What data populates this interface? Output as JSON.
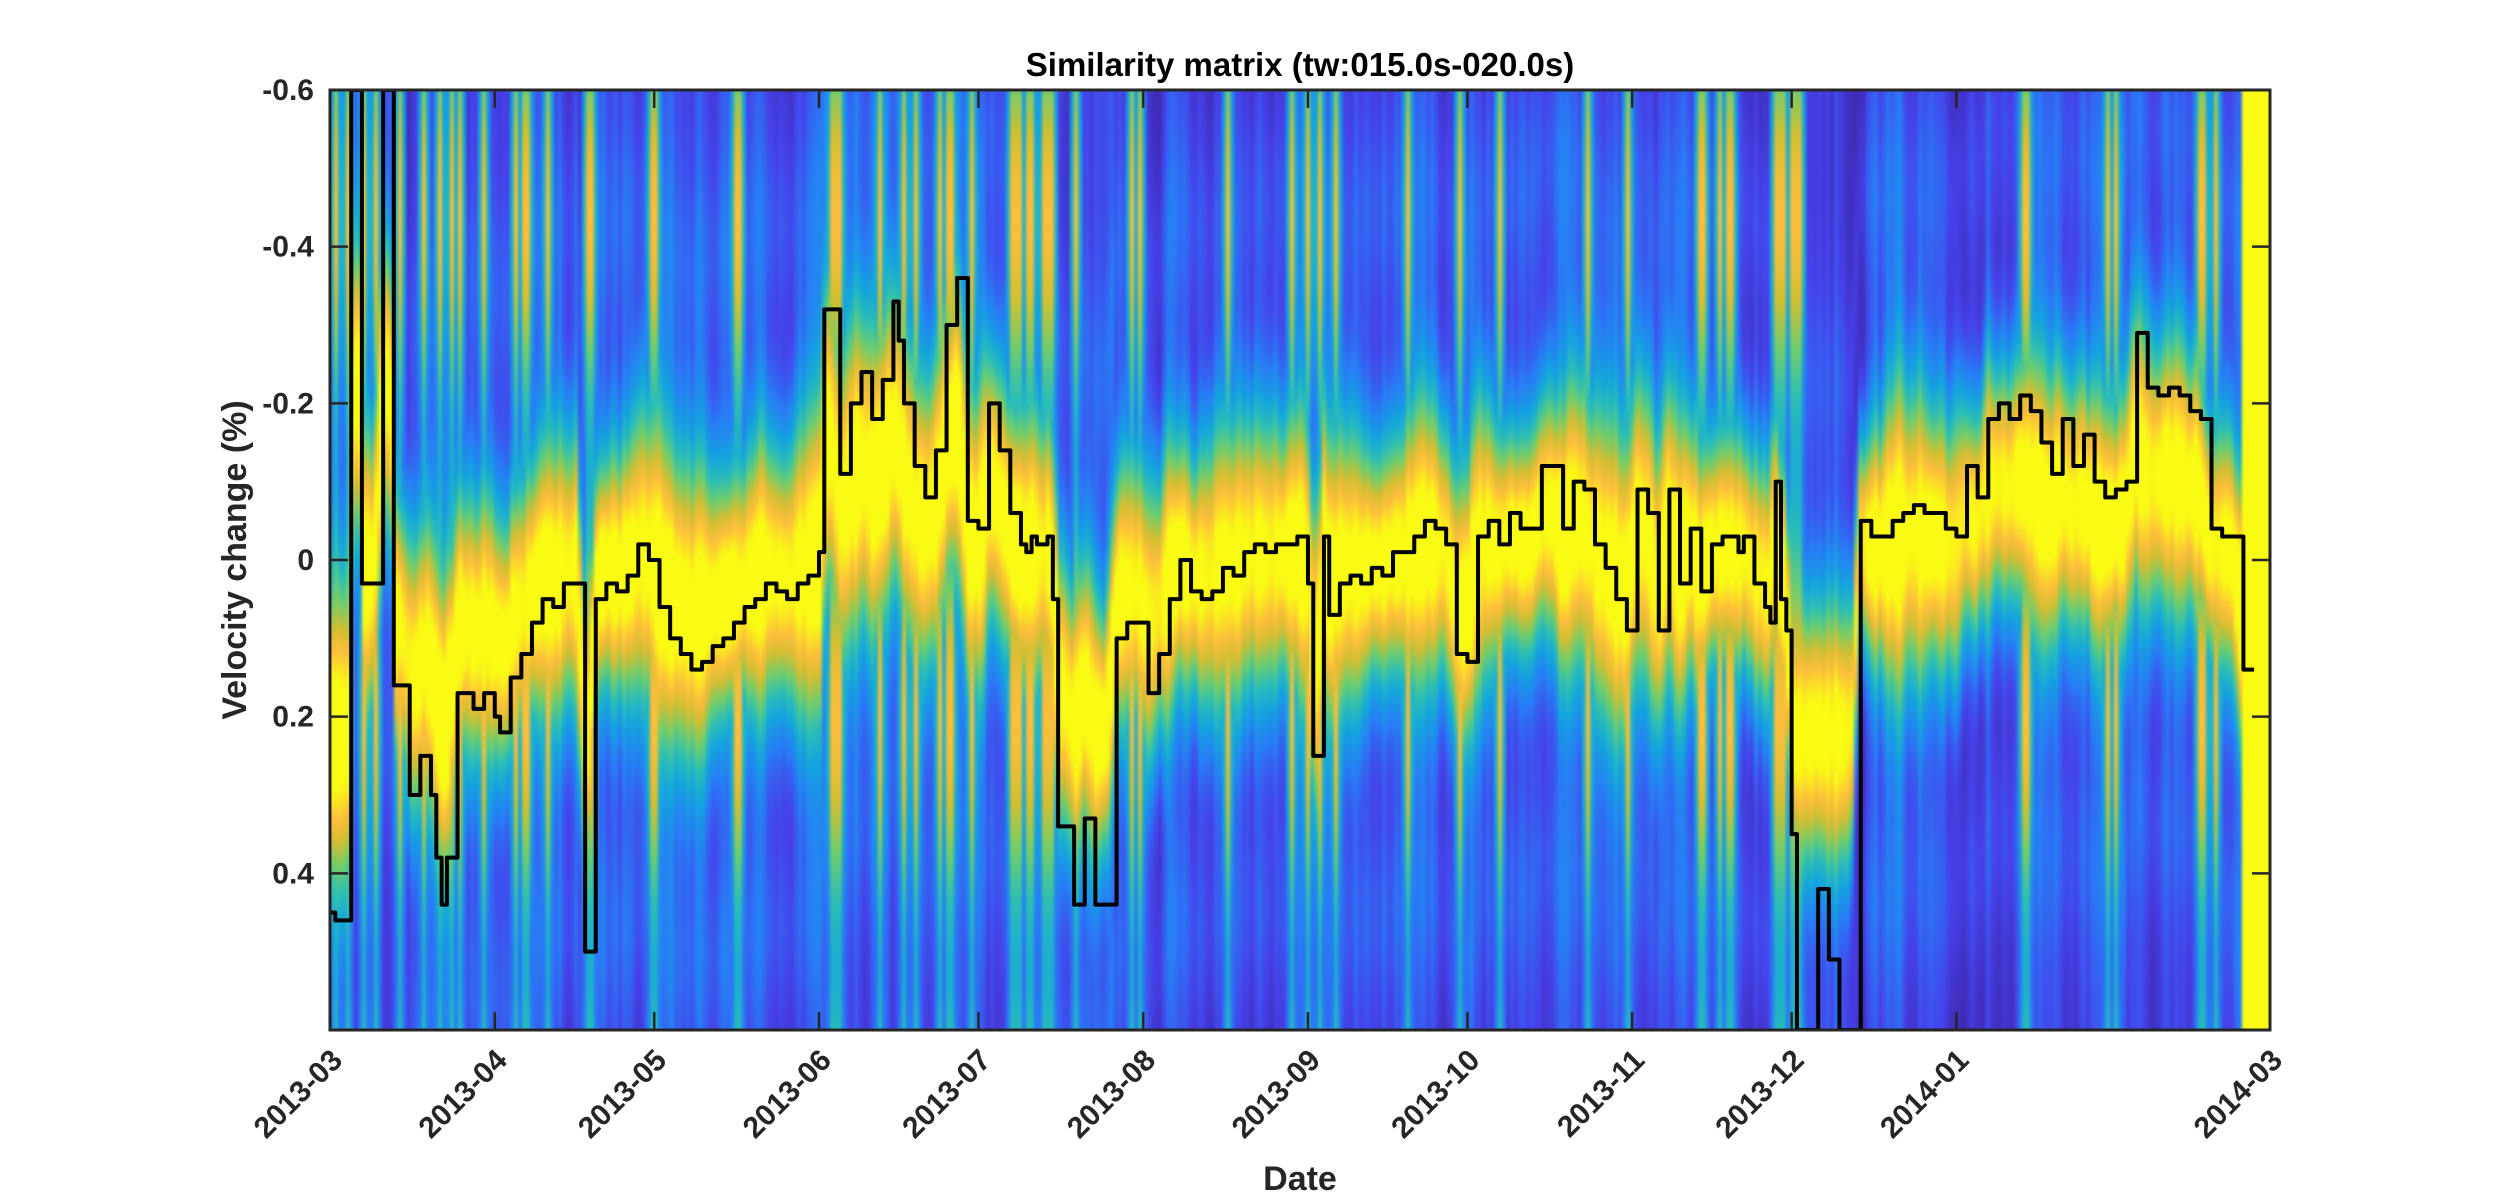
{
  "chart_data": {
    "type": "heatmap",
    "title": "Similarity matrix (tw:015.0s-020.0s)",
    "xlabel": "Date",
    "ylabel": "Velocity change (%)",
    "x_tick_labels": [
      "2013-03",
      "2013-04",
      "2013-05",
      "2013-06",
      "2013-07",
      "2013-08",
      "2013-09",
      "2013-10",
      "2013-11",
      "2013-12",
      "2014-01",
      "2014-03"
    ],
    "x_tick_days": [
      0,
      31,
      61,
      92,
      122,
      153,
      184,
      214,
      245,
      275,
      306,
      365
    ],
    "x_range_days": [
      0,
      365
    ],
    "y_ticks": [
      -0.6,
      -0.4,
      -0.2,
      0,
      0.2,
      0.4
    ],
    "y_tick_labels": [
      "-0.6",
      "-0.4",
      "-0.2",
      "0",
      "0.2",
      "0.4"
    ],
    "y_range": [
      -0.6,
      0.6
    ],
    "y_reversed": true,
    "colormap": "parula",
    "colors": {
      "line": "#000000",
      "axis": "#262626",
      "cmap_low": "#3e26a8",
      "cmap_mid": "#2db2c8",
      "cmap_high": "#f9fb14"
    },
    "series": [
      {
        "name": "velocity change",
        "x_days": [
          0,
          1,
          3,
          4,
          5,
          6,
          8,
          10,
          11,
          12,
          13,
          15,
          16,
          17,
          18,
          19,
          20,
          21,
          22,
          24,
          26,
          27,
          29,
          31,
          32,
          33,
          34,
          36,
          38,
          40,
          42,
          44,
          46,
          48,
          50,
          52,
          54,
          56,
          58,
          60,
          62,
          64,
          66,
          68,
          70,
          72,
          74,
          76,
          78,
          80,
          82,
          84,
          86,
          88,
          90,
          92,
          93,
          94,
          96,
          98,
          100,
          102,
          104,
          106,
          107,
          108,
          110,
          112,
          114,
          116,
          118,
          120,
          122,
          124,
          126,
          128,
          130,
          131,
          132,
          133,
          134,
          135,
          136,
          137,
          138,
          140,
          142,
          144,
          146,
          148,
          150,
          152,
          154,
          156,
          158,
          160,
          162,
          164,
          166,
          168,
          170,
          172,
          174,
          176,
          178,
          180,
          182,
          184,
          185,
          186,
          187,
          188,
          190,
          192,
          194,
          196,
          198,
          200,
          202,
          204,
          206,
          208,
          210,
          212,
          214,
          216,
          218,
          220,
          222,
          224,
          226,
          228,
          230,
          232,
          234,
          236,
          238,
          240,
          242,
          244,
          246,
          248,
          250,
          252,
          254,
          256,
          258,
          260,
          262,
          264,
          265,
          266,
          268,
          270,
          271,
          272,
          273,
          274,
          275,
          276,
          278,
          280,
          282,
          284,
          286,
          288,
          290,
          292,
          294,
          296,
          298,
          300,
          302,
          304,
          306,
          308,
          310,
          312,
          314,
          316,
          318,
          320,
          322,
          324,
          326,
          328,
          330,
          332,
          334,
          336,
          338,
          340,
          342,
          344,
          346,
          348,
          350,
          352,
          354,
          356,
          358,
          360,
          362,
          364,
          365
        ],
        "values": [
          0.45,
          0.46,
          0.46,
          -0.6,
          -0.6,
          0.03,
          0.03,
          -0.6,
          -0.6,
          0.16,
          0.16,
          0.3,
          0.3,
          0.25,
          0.25,
          0.3,
          0.38,
          0.44,
          0.38,
          0.17,
          0.17,
          0.19,
          0.17,
          0.2,
          0.22,
          0.22,
          0.15,
          0.12,
          0.08,
          0.05,
          0.06,
          0.03,
          0.03,
          0.5,
          0.05,
          0.03,
          0.04,
          0.02,
          -0.02,
          0.0,
          0.06,
          0.1,
          0.12,
          0.14,
          0.13,
          0.11,
          0.1,
          0.08,
          0.06,
          0.05,
          0.03,
          0.04,
          0.05,
          0.03,
          0.02,
          -0.01,
          -0.32,
          -0.32,
          -0.11,
          -0.2,
          -0.24,
          -0.18,
          -0.23,
          -0.33,
          -0.28,
          -0.2,
          -0.12,
          -0.08,
          -0.14,
          -0.3,
          -0.36,
          -0.05,
          -0.04,
          -0.2,
          -0.14,
          -0.06,
          -0.02,
          -0.01,
          -0.03,
          -0.02,
          -0.02,
          -0.03,
          0.05,
          0.34,
          0.34,
          0.44,
          0.33,
          0.44,
          0.44,
          0.1,
          0.08,
          0.08,
          0.17,
          0.12,
          0.05,
          0.0,
          0.04,
          0.05,
          0.04,
          0.01,
          0.02,
          -0.01,
          -0.02,
          -0.01,
          -0.02,
          -0.02,
          -0.03,
          0.03,
          0.25,
          0.25,
          -0.03,
          0.07,
          0.03,
          0.02,
          0.03,
          0.01,
          0.02,
          -0.01,
          -0.01,
          -0.03,
          -0.05,
          -0.04,
          -0.02,
          0.12,
          0.13,
          -0.03,
          -0.05,
          -0.02,
          -0.06,
          -0.04,
          -0.04,
          -0.12,
          -0.12,
          -0.04,
          -0.1,
          -0.09,
          -0.02,
          0.01,
          0.05,
          0.09,
          -0.09,
          -0.06,
          0.09,
          -0.09,
          0.03,
          -0.04,
          0.04,
          -0.02,
          -0.03,
          -0.03,
          -0.01,
          -0.03,
          0.03,
          0.06,
          0.08,
          -0.1,
          0.05,
          0.09,
          0.35,
          0.6,
          0.6,
          0.42,
          0.51,
          0.6,
          0.6,
          -0.05,
          -0.03,
          -0.03,
          -0.05,
          -0.06,
          -0.07,
          -0.06,
          -0.06,
          -0.04,
          -0.03,
          -0.12,
          -0.08,
          -0.18,
          -0.2,
          -0.18,
          -0.21,
          -0.19,
          -0.15,
          -0.11,
          -0.18,
          -0.12,
          -0.16,
          -0.1,
          -0.08,
          -0.09,
          -0.1,
          -0.29,
          -0.22,
          -0.21,
          -0.22,
          -0.21,
          -0.19,
          -0.18,
          -0.04,
          -0.03,
          -0.03,
          0.14
        ]
      }
    ]
  }
}
